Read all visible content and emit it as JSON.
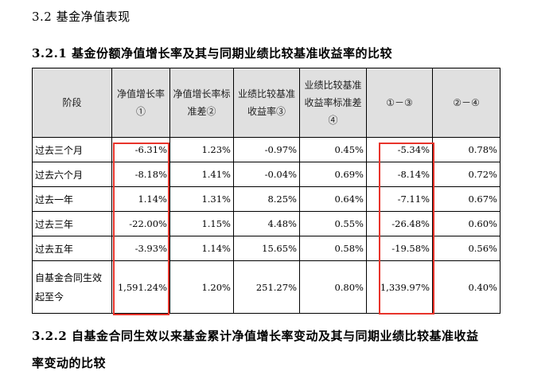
{
  "section_title": "3.2 基金净值表现",
  "subsection_title": "3.2.1 基金份额净值增长率及其与同期业绩比较基准收益率的比较",
  "table": {
    "headers": [
      "阶段",
      "净值增长率①",
      "净值增长率标准差②",
      "业绩比较基准收益率③",
      "业绩比较基准收益率标准差④",
      "①－③",
      "②－④"
    ],
    "rows": [
      [
        "过去三个月",
        "-6.31%",
        "1.23%",
        "-0.97%",
        "0.45%",
        "-5.34%",
        "0.78%"
      ],
      [
        "过去六个月",
        "-8.18%",
        "1.41%",
        "-0.04%",
        "0.69%",
        "-8.14%",
        "0.72%"
      ],
      [
        "过去一年",
        "1.14%",
        "1.31%",
        "8.25%",
        "0.64%",
        "-7.11%",
        "0.67%"
      ],
      [
        "过去三年",
        "-22.00%",
        "1.15%",
        "4.48%",
        "0.55%",
        "-26.48%",
        "0.60%"
      ],
      [
        "过去五年",
        "-3.93%",
        "1.14%",
        "15.65%",
        "0.58%",
        "-19.58%",
        "0.56%"
      ],
      [
        "自基金合同生效起至今",
        "1,591.24%",
        "1.20%",
        "251.27%",
        "0.80%",
        "1,339.97%",
        "0.40%"
      ]
    ]
  },
  "next_section_title_line1": "3.2.2 自基金合同生效以来基金累计净值增长率变动及其与同期业绩比较基准收益",
  "next_section_title_line2": "率变动的比较",
  "colors": {
    "highlight": "#e8342b",
    "header_bg": "#e0e0e0"
  }
}
